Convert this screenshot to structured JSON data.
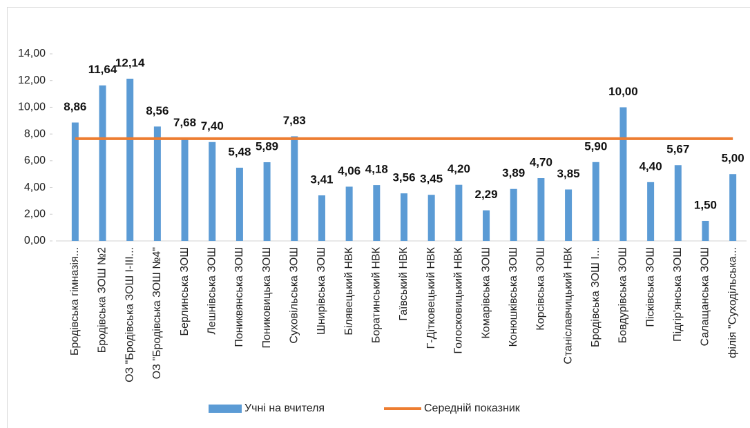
{
  "chart_data": {
    "type": "bar",
    "categories": [
      "Бродівська гімназія...",
      "Бродівська ЗОШ №2",
      "ОЗ \"Бродівська ЗОШ І-ІІІ...",
      "ОЗ \"Бродівська ЗОШ №4\"",
      "Берлинська ЗОШ",
      "Лешнівська ЗОШ",
      "Пониквянська ЗОШ",
      "Пониковицька ЗОШ",
      "Суховільська ЗОШ",
      "Шнирівська ЗОШ",
      "Білявецький НВК",
      "Боратинський НВК",
      "Гаївський НВК",
      "Г-Дітковецький НВК",
      "Голосковицький НВК",
      "Комарівська ЗОШ",
      "Конюшківська ЗОШ",
      "Корсівська ЗОШ",
      "Станіславчицький НВК",
      "Бродівська ЗОШ І...",
      "Бовдурівська ЗОШ",
      "Пісківська ЗОШ",
      "Підгір'янська ЗОШ",
      "Салащанська ЗОШ",
      "філія \"Суходільська..."
    ],
    "series": [
      {
        "name": "Учні на вчителя",
        "type": "bar",
        "color": "#5b9bd5",
        "values": [
          8.86,
          11.64,
          12.14,
          8.56,
          7.68,
          7.4,
          5.48,
          5.89,
          7.83,
          3.41,
          4.06,
          4.18,
          3.56,
          3.45,
          4.2,
          2.29,
          3.89,
          4.7,
          3.85,
          5.9,
          10.0,
          4.4,
          5.67,
          1.5,
          5.0
        ],
        "value_labels": [
          "8,86",
          "11,64",
          "12,14",
          "8,56",
          "7,68",
          "7,40",
          "5,48",
          "5,89",
          "7,83",
          "3,41",
          "4,06",
          "4,18",
          "3,56",
          "3,45",
          "4,20",
          "2,29",
          "3,89",
          "4,70",
          "3,85",
          "5,90",
          "10,00",
          "4,40",
          "5,67",
          "1,50",
          "5,00"
        ]
      },
      {
        "name": "Середній показник",
        "type": "line",
        "color": "#ed7d31",
        "values": [
          7.65,
          7.65,
          7.65,
          7.65,
          7.65,
          7.65,
          7.65,
          7.65,
          7.65,
          7.65,
          7.65,
          7.65,
          7.65,
          7.65,
          7.65,
          7.65,
          7.65,
          7.65,
          7.65,
          7.65,
          7.65,
          7.65,
          7.65,
          7.65,
          7.65
        ]
      }
    ],
    "ylim": [
      0,
      14
    ],
    "yticks": [
      {
        "value": 0,
        "label": "0,00"
      },
      {
        "value": 2,
        "label": "2,00"
      },
      {
        "value": 4,
        "label": "4,00"
      },
      {
        "value": 6,
        "label": "6,00"
      },
      {
        "value": 8,
        "label": "8,00"
      },
      {
        "value": 10,
        "label": "10,00"
      },
      {
        "value": 12,
        "label": "12,00"
      },
      {
        "value": 14,
        "label": "14,00"
      }
    ],
    "legend": "bottom"
  }
}
